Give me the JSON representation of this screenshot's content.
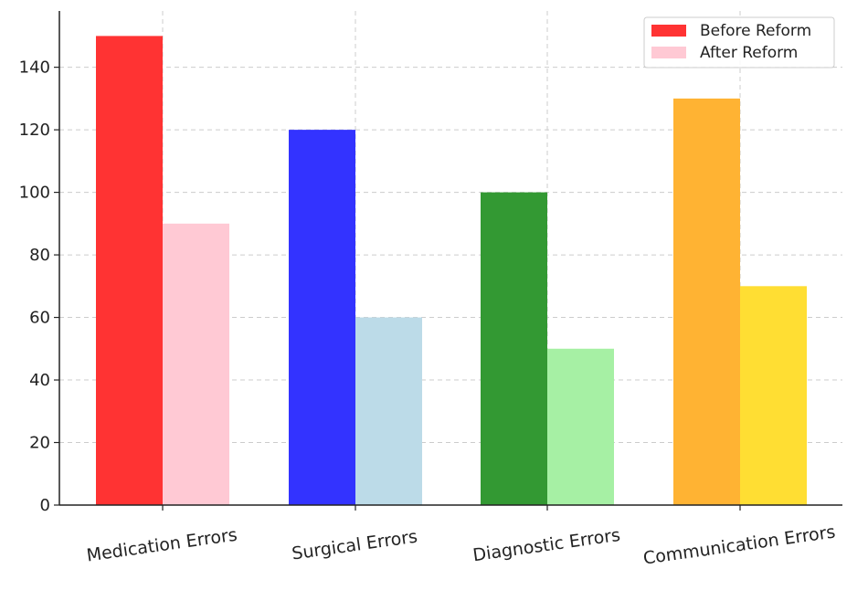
{
  "chart_data": {
    "type": "bar",
    "categories": [
      "Medication Errors",
      "Surgical Errors",
      "Diagnostic Errors",
      "Communication Errors"
    ],
    "series": [
      {
        "name": "Before Reform",
        "values": [
          150,
          120,
          100,
          130
        ],
        "colors": [
          "#ff3333",
          "#3333ff",
          "#339933",
          "#ffb333"
        ],
        "legend_color": "#ff3333"
      },
      {
        "name": "After Reform",
        "values": [
          90,
          60,
          50,
          70
        ],
        "colors": [
          "#ffc9d4",
          "#bcdbe8",
          "#a6f0a4",
          "#ffde33"
        ],
        "legend_color": "#ffc9d4"
      }
    ],
    "title": "",
    "xlabel": "",
    "ylabel": "",
    "ylim": [
      0,
      158
    ],
    "yticks": [
      0,
      20,
      40,
      60,
      80,
      100,
      120,
      140
    ],
    "grid": true,
    "legend_position": "top-right"
  }
}
